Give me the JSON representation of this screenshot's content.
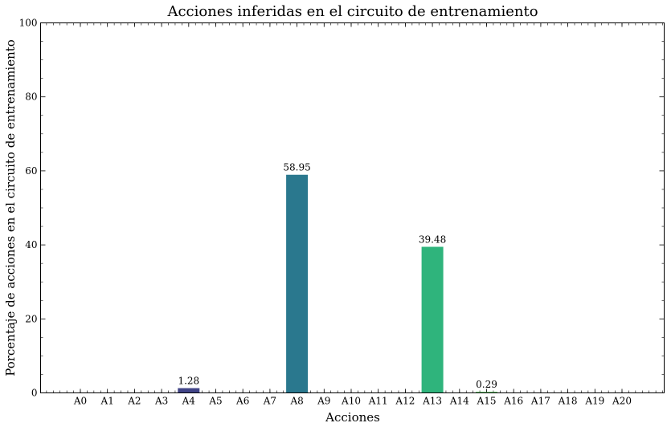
{
  "chart_data": {
    "type": "bar",
    "title": "Acciones inferidas en el circuito de entrenamiento",
    "xlabel": "Acciones",
    "ylabel": "Porcentaje de acciones en el circuito de entrenamiento",
    "categories": [
      "A0",
      "A1",
      "A2",
      "A3",
      "A4",
      "A5",
      "A6",
      "A7",
      "A8",
      "A9",
      "A10",
      "A11",
      "A12",
      "A13",
      "A14",
      "A15",
      "A16",
      "A17",
      "A18",
      "A19",
      "A20"
    ],
    "values": [
      0,
      0,
      0,
      0,
      1.28,
      0,
      0,
      0,
      58.95,
      0,
      0,
      0,
      0,
      39.48,
      0,
      0.29,
      0,
      0,
      0,
      0,
      0
    ],
    "data_labels": [
      "",
      "",
      "",
      "",
      "1.28",
      "",
      "",
      "",
      "58.95",
      "",
      "",
      "",
      "",
      "39.48",
      "",
      "0.29",
      "",
      "",
      "",
      "",
      ""
    ],
    "bar_colors": [
      "#440154",
      "#471365",
      "#482475",
      "#463480",
      "#414487",
      "#3b528b",
      "#355f8d",
      "#2f6c8e",
      "#2a788e",
      "#25848e",
      "#21918c",
      "#1e9c89",
      "#22a884",
      "#2fb47c",
      "#44bf70",
      "#5ec962",
      "#7ad151",
      "#9bd93c",
      "#bddf26",
      "#dfe318",
      "#fde725"
    ],
    "ylim": [
      0,
      100
    ],
    "yticks": [
      0,
      20,
      40,
      60,
      80,
      100
    ],
    "ytick_labels": [
      "0",
      "20",
      "40",
      "60",
      "80",
      "100"
    ],
    "grid": false,
    "legend": "none"
  }
}
